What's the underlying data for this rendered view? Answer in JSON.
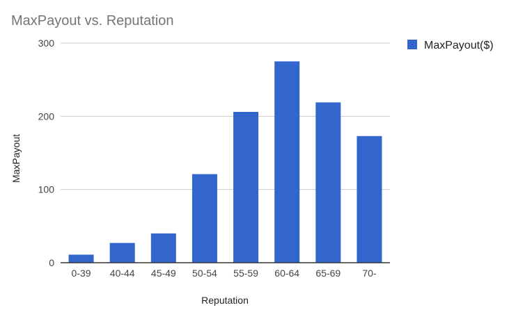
{
  "chart_data": {
    "type": "bar",
    "title": "MaxPayout vs. Reputation",
    "xlabel": "Reputation",
    "ylabel": "MaxPayout",
    "categories": [
      "0-39",
      "40-44",
      "45-49",
      "50-54",
      "55-59",
      "60-64",
      "65-69",
      "70-"
    ],
    "series": [
      {
        "name": "MaxPayout($)",
        "values": [
          11,
          27,
          40,
          121,
          206,
          275,
          219,
          173
        ],
        "color": "#3366cc"
      }
    ],
    "ylim": [
      0,
      300
    ],
    "yticks": [
      0,
      100,
      200,
      300
    ],
    "grid": true,
    "legend_position": "right"
  }
}
